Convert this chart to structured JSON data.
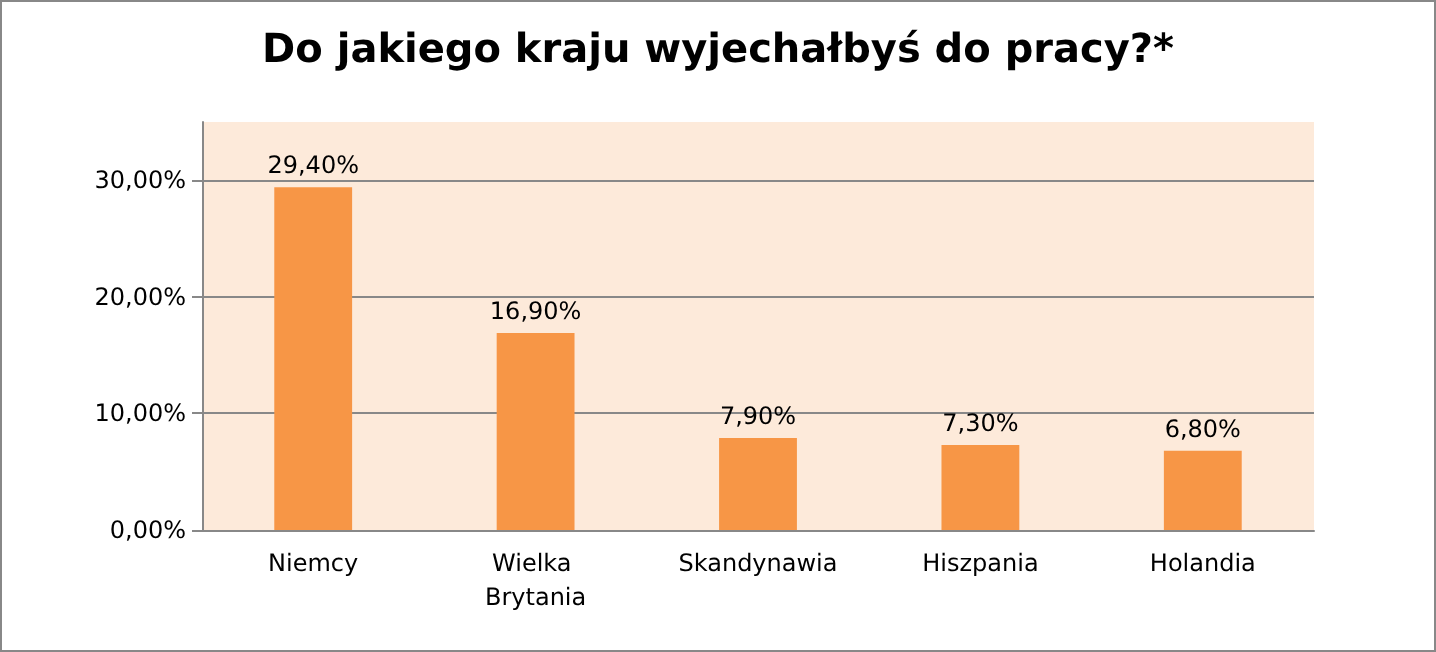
{
  "chart_data": {
    "type": "bar",
    "title": "Do jakiego kraju wyjechałbyś do pracy?*",
    "categories": [
      "Niemcy",
      "Wielka Brytania",
      "Skandynawia",
      "Hiszpania",
      "Holandia"
    ],
    "values": [
      29.4,
      16.9,
      7.9,
      7.3,
      6.8
    ],
    "value_labels": [
      "29,40%",
      "16,90%",
      "7,90%",
      "7,30%",
      "6,80%"
    ],
    "color": "#f79646",
    "ylim": [
      0,
      35
    ],
    "yticks": [
      {
        "value": 0,
        "label": "0,00%"
      },
      {
        "value": 10,
        "label": "10,00%"
      },
      {
        "value": 20,
        "label": "20,00%"
      },
      {
        "value": 30,
        "label": "30,00%"
      }
    ],
    "grid": "y"
  }
}
